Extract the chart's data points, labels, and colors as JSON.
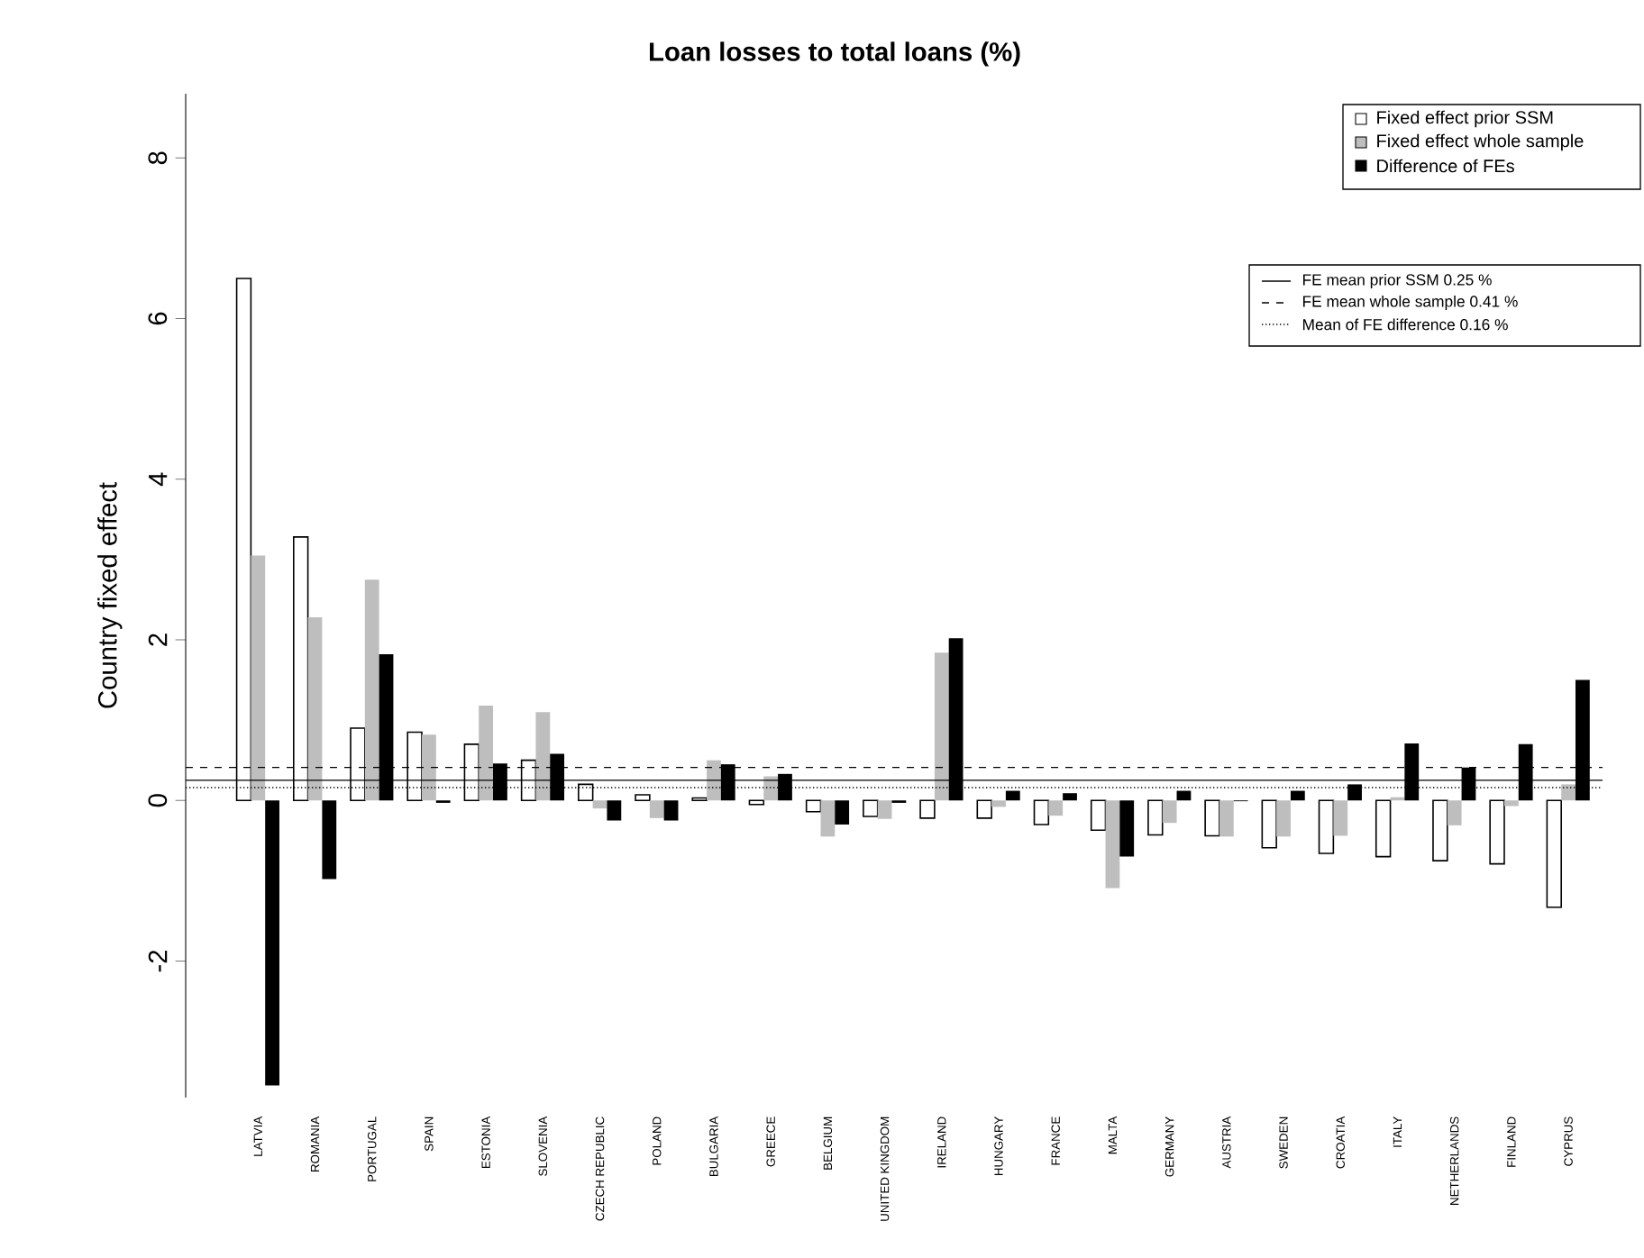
{
  "chart_data": {
    "type": "bar",
    "title": "**Loan losses to total loans (%)**",
    "ylabel": "Country fixed effect",
    "categories": [
      "LATVIA",
      "ROMANIA",
      "PORTUGAL",
      "SPAIN",
      "ESTONIA",
      "SLOVENIA",
      "CZECH REPUBLIC",
      "POLAND",
      "BULGARIA",
      "GREECE",
      "BELGIUM",
      "UNITED KINGDOM",
      "IRELAND",
      "HUNGARY",
      "FRANCE",
      "MALTA",
      "GERMANY",
      "AUSTRIA",
      "SWEDEN",
      "CROATIA",
      "ITALY",
      "NETHERLANDS",
      "FINLAND",
      "CYPRUS"
    ],
    "series": [
      {
        "name": "Fixed effect prior SSM",
        "color": "#ffffff",
        "values": [
          6.5,
          3.28,
          0.9,
          0.85,
          0.7,
          0.5,
          0.2,
          0.07,
          0.03,
          -0.05,
          -0.14,
          -0.2,
          -0.22,
          -0.22,
          -0.3,
          -0.37,
          -0.43,
          -0.44,
          -0.59,
          -0.66,
          -0.7,
          -0.75,
          -0.79,
          -1.33
        ]
      },
      {
        "name": "Fixed effect whole sample",
        "color": "#bebebe",
        "values": [
          3.05,
          2.28,
          2.75,
          0.82,
          1.18,
          1.1,
          -0.1,
          -0.22,
          0.5,
          0.3,
          -0.45,
          -0.23,
          1.84,
          -0.08,
          -0.19,
          -1.09,
          -0.28,
          -0.45,
          -0.45,
          -0.44,
          0.04,
          -0.31,
          -0.07,
          0.2
        ]
      },
      {
        "name": "Difference of FEs",
        "color": "#000000",
        "values": [
          -3.55,
          -0.98,
          1.82,
          -0.03,
          0.46,
          0.58,
          -0.25,
          -0.25,
          0.45,
          0.33,
          -0.3,
          -0.03,
          2.02,
          0.12,
          0.09,
          -0.7,
          0.12,
          -0.01,
          0.12,
          0.2,
          0.71,
          0.41,
          0.7,
          1.5
        ]
      }
    ],
    "ylim": [
      -3.7,
      8.8
    ],
    "yticks": [
      -2,
      0,
      2,
      4,
      6,
      8
    ],
    "ref_lines": [
      {
        "axis": "y",
        "value": 0.25,
        "label": "FE mean prior SSM 0.25 %",
        "line_style": "solid"
      },
      {
        "axis": "y",
        "value": 0.41,
        "label": "FE mean whole sample 0.41 %",
        "line_style": "dashed"
      },
      {
        "axis": "y",
        "value": 0.16,
        "label": "Mean of FE difference 0.16 %",
        "line_style": "dotted"
      }
    ],
    "legend": "top right"
  }
}
